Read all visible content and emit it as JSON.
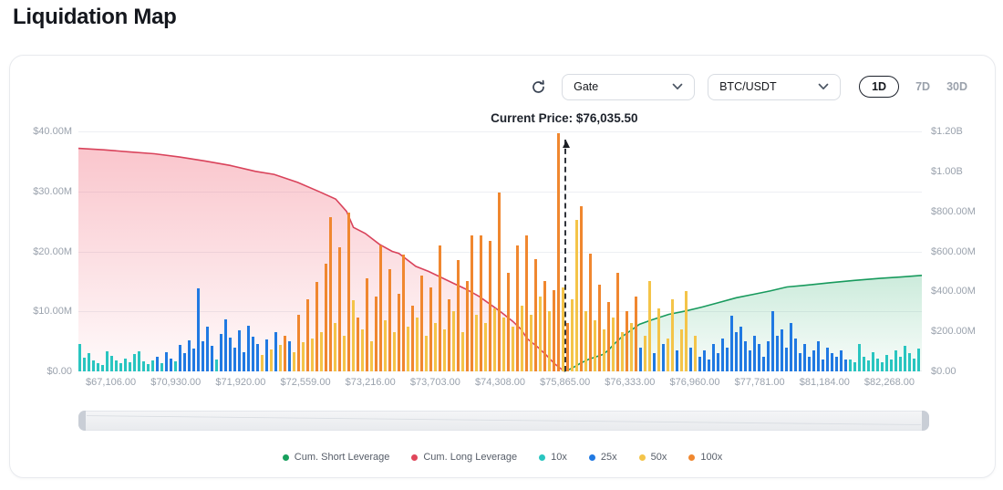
{
  "page": {
    "title": "Liquidation Map"
  },
  "toolbar": {
    "exchange_select": {
      "value": "Gate"
    },
    "pair_select": {
      "value": "BTC/USDT"
    },
    "ranges": [
      {
        "label": "1D",
        "active": true
      },
      {
        "label": "7D",
        "active": false
      },
      {
        "label": "30D",
        "active": false
      }
    ],
    "icons": {
      "refresh": "circular-arrow",
      "select_chevron": "chevron-down",
      "price_pointer": "arrow-up"
    }
  },
  "chart_data": {
    "type": "bar",
    "title": "Liquidation Map (Gate BTC/USDT, 1D)",
    "current_price_label": "Current Price: $76,035.50",
    "current_price": 76035.5,
    "current_price_x_frac": 0.576,
    "grid": true,
    "legend_position": "bottom",
    "left_axis": {
      "unit": "$M",
      "max": 40,
      "ticks": [
        {
          "label": "$40.00M",
          "v": 40
        },
        {
          "label": "$30.00M",
          "v": 30
        },
        {
          "label": "$20.00M",
          "v": 20
        },
        {
          "label": "$10.00M",
          "v": 10
        },
        {
          "label": "$0.00",
          "v": 0
        }
      ]
    },
    "right_axis": {
      "unit": "$B",
      "max": 1.2,
      "ticks": [
        {
          "label": "$1.20B",
          "v": 1.2
        },
        {
          "label": "$1.00B",
          "v": 1.0
        },
        {
          "label": "$800.00M",
          "v": 0.8
        },
        {
          "label": "$600.00M",
          "v": 0.6
        },
        {
          "label": "$400.00M",
          "v": 0.4
        },
        {
          "label": "$200.00M",
          "v": 0.2
        },
        {
          "label": "$0.00",
          "v": 0
        }
      ]
    },
    "x_ticks": [
      "$67,106.00",
      "$70,930.00",
      "$71,920.00",
      "$72,559.00",
      "$73,216.00",
      "$73,703.00",
      "$74,308.00",
      "$75,865.00",
      "$76,333.00",
      "$76,960.00",
      "$77,781.00",
      "$81,184.00",
      "$82,268.00"
    ],
    "legend": [
      {
        "label": "Cum. Short Leverage",
        "color": "#18a05d"
      },
      {
        "label": "Cum. Long Leverage",
        "color": "#e0465a"
      },
      {
        "label": "10x",
        "color": "#29c5c0"
      },
      {
        "label": "25x",
        "color": "#2079e2"
      },
      {
        "label": "50x",
        "color": "#f4c449"
      },
      {
        "label": "100x",
        "color": "#f0872f"
      }
    ],
    "colors": {
      "t": "#29c5c0",
      "b": "#2079e2",
      "y": "#f4c449",
      "o": "#f0872f",
      "long": "#d9435b",
      "short": "#189a5d"
    },
    "bars_note": "values are liquidation leverage in $M (left axis); t=10x b=25x y=50x o=100x, ordered left-to-right across price range",
    "bars": [
      [
        4.6,
        "t"
      ],
      [
        2.3,
        "t"
      ],
      [
        3.1,
        "t"
      ],
      [
        1.9,
        "t"
      ],
      [
        1.4,
        "t"
      ],
      [
        1.0,
        "t"
      ],
      [
        3.4,
        "t"
      ],
      [
        2.6,
        "t"
      ],
      [
        1.9,
        "t"
      ],
      [
        1.3,
        "t"
      ],
      [
        2.1,
        "t"
      ],
      [
        1.5,
        "t"
      ],
      [
        2.9,
        "t"
      ],
      [
        3.3,
        "t"
      ],
      [
        1.7,
        "t"
      ],
      [
        1.2,
        "t"
      ],
      [
        1.8,
        "t"
      ],
      [
        2.4,
        "b"
      ],
      [
        1.3,
        "t"
      ],
      [
        3.2,
        "b"
      ],
      [
        2.2,
        "b"
      ],
      [
        1.6,
        "t"
      ],
      [
        4.4,
        "b"
      ],
      [
        3.0,
        "b"
      ],
      [
        5.2,
        "b"
      ],
      [
        3.8,
        "b"
      ],
      [
        13.8,
        "b"
      ],
      [
        5.0,
        "b"
      ],
      [
        7.4,
        "b"
      ],
      [
        4.2,
        "b"
      ],
      [
        2.0,
        "t"
      ],
      [
        6.2,
        "b"
      ],
      [
        8.6,
        "b"
      ],
      [
        5.6,
        "b"
      ],
      [
        4.0,
        "b"
      ],
      [
        6.8,
        "b"
      ],
      [
        3.2,
        "b"
      ],
      [
        7.6,
        "b"
      ],
      [
        5.8,
        "b"
      ],
      [
        4.6,
        "b"
      ],
      [
        2.8,
        "y"
      ],
      [
        5.4,
        "b"
      ],
      [
        3.6,
        "y"
      ],
      [
        6.6,
        "b"
      ],
      [
        4.4,
        "y"
      ],
      [
        6.0,
        "o"
      ],
      [
        5.0,
        "b"
      ],
      [
        3.2,
        "y"
      ],
      [
        9.5,
        "o"
      ],
      [
        4.8,
        "y"
      ],
      [
        12.0,
        "o"
      ],
      [
        5.5,
        "y"
      ],
      [
        14.9,
        "o"
      ],
      [
        6.5,
        "y"
      ],
      [
        18.0,
        "o"
      ],
      [
        25.7,
        "o"
      ],
      [
        8.0,
        "y"
      ],
      [
        20.7,
        "o"
      ],
      [
        6.0,
        "y"
      ],
      [
        26.5,
        "o"
      ],
      [
        11.9,
        "y"
      ],
      [
        9.0,
        "o"
      ],
      [
        7.0,
        "y"
      ],
      [
        15.5,
        "o"
      ],
      [
        5.0,
        "y"
      ],
      [
        12.5,
        "o"
      ],
      [
        21.0,
        "o"
      ],
      [
        8.5,
        "y"
      ],
      [
        17.0,
        "o"
      ],
      [
        6.5,
        "y"
      ],
      [
        13.0,
        "o"
      ],
      [
        19.5,
        "o"
      ],
      [
        7.5,
        "y"
      ],
      [
        11.0,
        "o"
      ],
      [
        9.0,
        "y"
      ],
      [
        16.0,
        "o"
      ],
      [
        6.0,
        "y"
      ],
      [
        14.0,
        "o"
      ],
      [
        8.0,
        "y"
      ],
      [
        21.0,
        "o"
      ],
      [
        7.0,
        "y"
      ],
      [
        12.0,
        "o"
      ],
      [
        10.0,
        "y"
      ],
      [
        18.5,
        "o"
      ],
      [
        6.5,
        "y"
      ],
      [
        15.0,
        "o"
      ],
      [
        22.7,
        "o"
      ],
      [
        9.5,
        "y"
      ],
      [
        22.7,
        "o"
      ],
      [
        8.0,
        "y"
      ],
      [
        21.7,
        "o"
      ],
      [
        10.5,
        "y"
      ],
      [
        29.8,
        "o"
      ],
      [
        9.0,
        "y"
      ],
      [
        16.5,
        "o"
      ],
      [
        7.5,
        "y"
      ],
      [
        21.0,
        "o"
      ],
      [
        11.0,
        "y"
      ],
      [
        22.7,
        "o"
      ],
      [
        9.5,
        "y"
      ],
      [
        18.7,
        "o"
      ],
      [
        12.5,
        "y"
      ],
      [
        15.0,
        "o"
      ],
      [
        10.0,
        "y"
      ],
      [
        13.5,
        "o"
      ],
      [
        39.7,
        "o"
      ],
      [
        14.0,
        "y"
      ],
      [
        8.0,
        "o"
      ],
      [
        12.0,
        "y"
      ],
      [
        25.2,
        "y"
      ],
      [
        27.5,
        "o"
      ],
      [
        10.0,
        "y"
      ],
      [
        19.6,
        "o"
      ],
      [
        8.5,
        "y"
      ],
      [
        14.5,
        "o"
      ],
      [
        7.0,
        "y"
      ],
      [
        11.5,
        "o"
      ],
      [
        9.0,
        "y"
      ],
      [
        16.5,
        "o"
      ],
      [
        6.5,
        "y"
      ],
      [
        10.0,
        "o"
      ],
      [
        8.0,
        "y"
      ],
      [
        12.5,
        "o"
      ],
      [
        4.0,
        "b"
      ],
      [
        6.0,
        "y"
      ],
      [
        15.0,
        "y"
      ],
      [
        3.0,
        "b"
      ],
      [
        10.5,
        "y"
      ],
      [
        4.5,
        "b"
      ],
      [
        5.5,
        "y"
      ],
      [
        12.0,
        "y"
      ],
      [
        3.5,
        "b"
      ],
      [
        7.0,
        "y"
      ],
      [
        13.4,
        "y"
      ],
      [
        4.0,
        "b"
      ],
      [
        6.0,
        "y"
      ],
      [
        2.5,
        "b"
      ],
      [
        3.5,
        "b"
      ],
      [
        2.0,
        "b"
      ],
      [
        4.5,
        "b"
      ],
      [
        3.0,
        "b"
      ],
      [
        5.5,
        "b"
      ],
      [
        4.0,
        "b"
      ],
      [
        9.3,
        "b"
      ],
      [
        6.5,
        "b"
      ],
      [
        7.5,
        "b"
      ],
      [
        5.0,
        "b"
      ],
      [
        3.5,
        "b"
      ],
      [
        6.0,
        "b"
      ],
      [
        4.5,
        "b"
      ],
      [
        2.5,
        "b"
      ],
      [
        5.0,
        "b"
      ],
      [
        10.0,
        "b"
      ],
      [
        6.0,
        "b"
      ],
      [
        7.0,
        "b"
      ],
      [
        4.0,
        "b"
      ],
      [
        8.0,
        "b"
      ],
      [
        5.5,
        "b"
      ],
      [
        3.0,
        "b"
      ],
      [
        4.5,
        "b"
      ],
      [
        2.5,
        "b"
      ],
      [
        3.5,
        "b"
      ],
      [
        5.0,
        "b"
      ],
      [
        2.0,
        "b"
      ],
      [
        4.0,
        "b"
      ],
      [
        3.0,
        "b"
      ],
      [
        2.5,
        "b"
      ],
      [
        3.5,
        "b"
      ],
      [
        2.0,
        "b"
      ],
      [
        2.0,
        "t"
      ],
      [
        1.5,
        "t"
      ],
      [
        4.5,
        "t"
      ],
      [
        2.5,
        "t"
      ],
      [
        1.8,
        "t"
      ],
      [
        3.2,
        "t"
      ],
      [
        2.2,
        "t"
      ],
      [
        1.5,
        "t"
      ],
      [
        2.8,
        "t"
      ],
      [
        2.0,
        "t"
      ],
      [
        3.5,
        "t"
      ],
      [
        2.5,
        "t"
      ],
      [
        4.2,
        "t"
      ],
      [
        3.0,
        "t"
      ],
      [
        2.2,
        "t"
      ],
      [
        3.8,
        "t"
      ]
    ],
    "cum_long_b": [
      [
        0,
        1.115
      ],
      [
        0.03,
        1.108
      ],
      [
        0.06,
        1.098
      ],
      [
        0.09,
        1.088
      ],
      [
        0.12,
        1.072
      ],
      [
        0.15,
        1.052
      ],
      [
        0.18,
        1.03
      ],
      [
        0.21,
        1.0
      ],
      [
        0.232,
        0.985
      ],
      [
        0.26,
        0.945
      ],
      [
        0.285,
        0.9
      ],
      [
        0.305,
        0.862
      ],
      [
        0.318,
        0.8
      ],
      [
        0.326,
        0.72
      ],
      [
        0.34,
        0.69
      ],
      [
        0.357,
        0.635
      ],
      [
        0.372,
        0.6
      ],
      [
        0.38,
        0.59
      ],
      [
        0.4,
        0.525
      ],
      [
        0.415,
        0.5
      ],
      [
        0.43,
        0.47
      ],
      [
        0.445,
        0.44
      ],
      [
        0.46,
        0.41
      ],
      [
        0.475,
        0.375
      ],
      [
        0.49,
        0.33
      ],
      [
        0.5,
        0.3
      ],
      [
        0.515,
        0.25
      ],
      [
        0.525,
        0.21
      ],
      [
        0.532,
        0.164
      ],
      [
        0.545,
        0.12
      ],
      [
        0.555,
        0.08
      ],
      [
        0.564,
        0.04
      ],
      [
        0.57,
        0.02
      ],
      [
        0.576,
        0.0
      ]
    ],
    "cum_short_b": [
      [
        0.576,
        0.0
      ],
      [
        0.585,
        0.015
      ],
      [
        0.595,
        0.04
      ],
      [
        0.605,
        0.06
      ],
      [
        0.615,
        0.075
      ],
      [
        0.622,
        0.085
      ],
      [
        0.628,
        0.105
      ],
      [
        0.636,
        0.14
      ],
      [
        0.645,
        0.175
      ],
      [
        0.655,
        0.205
      ],
      [
        0.665,
        0.235
      ],
      [
        0.68,
        0.258
      ],
      [
        0.7,
        0.285
      ],
      [
        0.72,
        0.302
      ],
      [
        0.74,
        0.322
      ],
      [
        0.76,
        0.345
      ],
      [
        0.78,
        0.368
      ],
      [
        0.8,
        0.385
      ],
      [
        0.82,
        0.402
      ],
      [
        0.84,
        0.422
      ],
      [
        0.86,
        0.43
      ],
      [
        0.89,
        0.443
      ],
      [
        0.92,
        0.455
      ],
      [
        0.95,
        0.465
      ],
      [
        0.975,
        0.472
      ],
      [
        1.0,
        0.48
      ]
    ]
  }
}
